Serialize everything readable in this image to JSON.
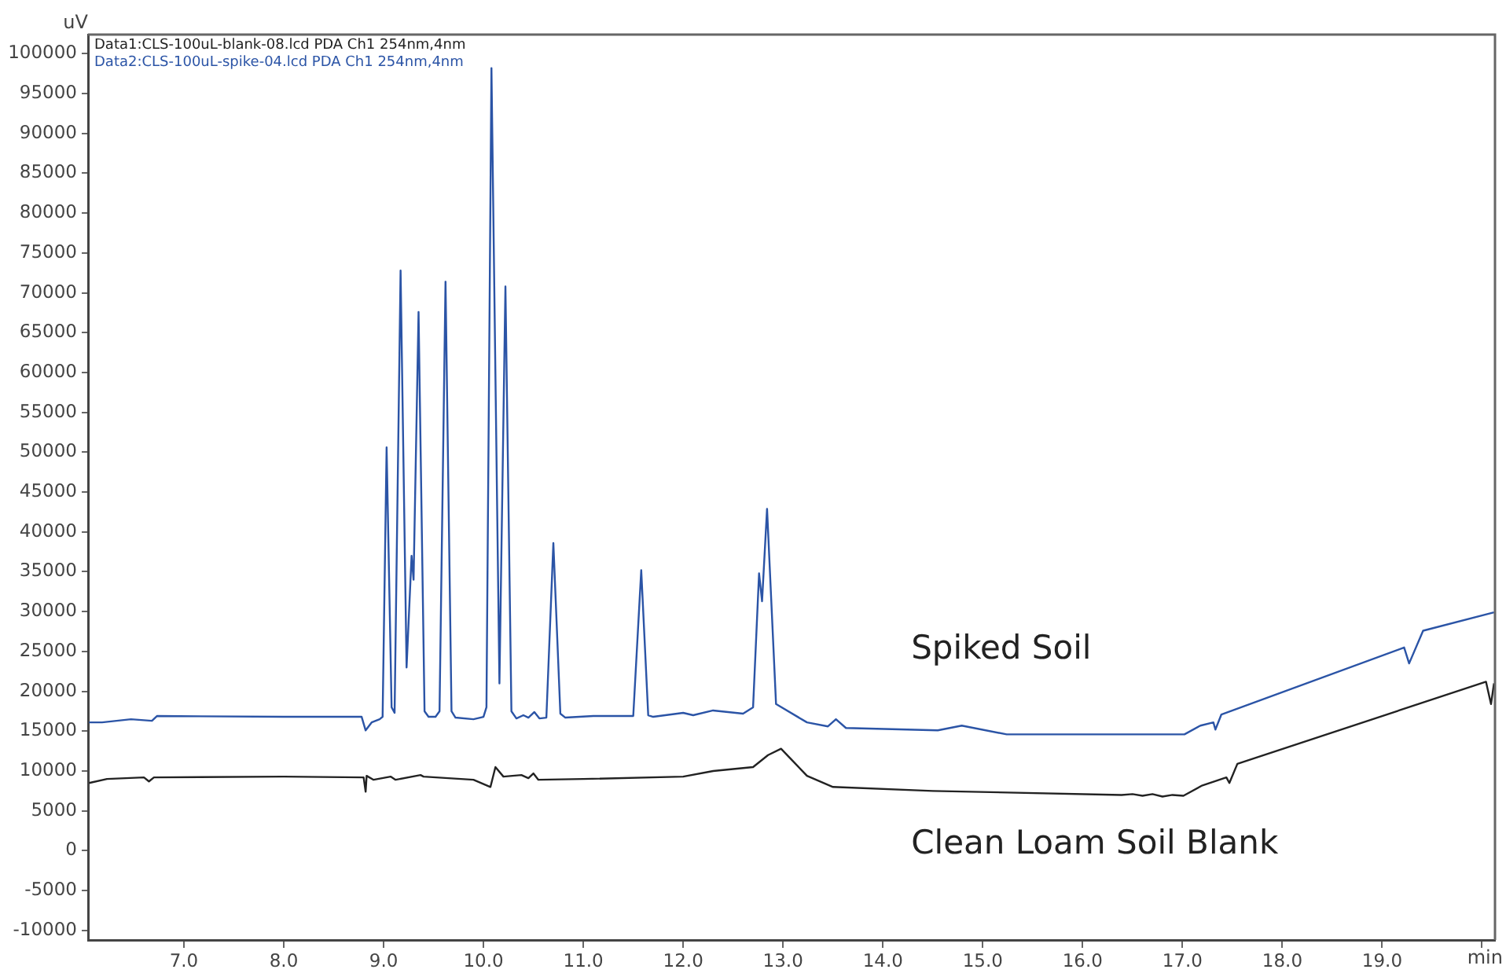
{
  "chart_data": {
    "type": "line",
    "xlabel": "min",
    "ylabel": "uV",
    "legend": "top left",
    "grid": false,
    "marker": "none",
    "line_style": "solid",
    "xlim": [
      6.04,
      20.13
    ],
    "ylim": [
      -11200,
      102400
    ],
    "xticks": [
      {
        "value": 7,
        "label": "7.0"
      },
      {
        "value": 8,
        "label": "8.0"
      },
      {
        "value": 9,
        "label": "9.0"
      },
      {
        "value": 10,
        "label": "10.0"
      },
      {
        "value": 11,
        "label": "11.0"
      },
      {
        "value": 12,
        "label": "12.0"
      },
      {
        "value": 13,
        "label": "13.0"
      },
      {
        "value": 14,
        "label": "14.0"
      },
      {
        "value": 15,
        "label": "15.0"
      },
      {
        "value": 16,
        "label": "16.0"
      },
      {
        "value": 17,
        "label": "17.0"
      },
      {
        "value": 18,
        "label": "18.0"
      },
      {
        "value": 19,
        "label": "19.0"
      },
      {
        "value": 20,
        "label": null
      }
    ],
    "yticks": [
      -10000,
      -5000,
      0,
      5000,
      10000,
      15000,
      20000,
      25000,
      30000,
      35000,
      40000,
      45000,
      50000,
      55000,
      60000,
      65000,
      70000,
      75000,
      80000,
      85000,
      90000,
      95000,
      100000
    ],
    "series": [
      {
        "name": "Data1:CLS-100uL-blank-08.lcd PDA Ch1 254nm,4nm",
        "color": "#222222",
        "x": [
          6.05,
          6.23,
          6.6,
          6.65,
          6.7,
          8.0,
          8.8,
          8.82,
          8.83,
          8.9,
          9.07,
          9.12,
          9.37,
          9.4,
          9.9,
          10.07,
          10.12,
          10.2,
          10.38,
          10.45,
          10.5,
          10.55,
          11.0,
          12.0,
          12.3,
          12.7,
          12.85,
          12.98,
          13.24,
          13.5,
          14.5,
          16.39,
          16.5,
          16.6,
          16.7,
          16.8,
          16.9,
          17.01,
          17.2,
          17.44,
          17.47,
          17.55,
          20.04,
          20.09,
          20.12
        ],
        "values": [
          8500,
          9000,
          9200,
          8700,
          9200,
          9300,
          9200,
          7400,
          9400,
          8900,
          9300,
          8900,
          9500,
          9300,
          8900,
          8000,
          10500,
          9300,
          9500,
          9100,
          9700,
          8900,
          9000,
          9300,
          10000,
          10500,
          12000,
          12800,
          9400,
          8000,
          7500,
          7000,
          7100,
          6900,
          7100,
          6800,
          7000,
          6900,
          8200,
          9200,
          8500,
          10900,
          21200,
          18400,
          21000
        ]
      },
      {
        "name": "Data2:CLS-100uL-spike-04.lcd PDA Ch1 254nm,4nm",
        "color": "#2b54a6",
        "x": [
          6.05,
          6.18,
          6.47,
          6.68,
          6.73,
          8.0,
          8.78,
          8.82,
          8.88,
          8.96,
          8.99,
          9.03,
          9.08,
          9.11,
          9.17,
          9.23,
          9.28,
          9.3,
          9.35,
          9.41,
          9.45,
          9.52,
          9.56,
          9.62,
          9.68,
          9.72,
          9.9,
          10.0,
          10.03,
          10.08,
          10.16,
          10.22,
          10.28,
          10.33,
          10.4,
          10.45,
          10.51,
          10.56,
          10.63,
          10.7,
          10.77,
          10.82,
          11.1,
          11.5,
          11.58,
          11.65,
          11.7,
          12.0,
          12.1,
          12.3,
          12.6,
          12.7,
          12.76,
          12.79,
          12.84,
          12.93,
          13.24,
          13.45,
          13.53,
          13.63,
          14.55,
          14.79,
          15.24,
          17.02,
          17.18,
          17.31,
          17.33,
          17.39,
          19.22,
          19.27,
          19.41,
          20.12
        ],
        "values": [
          16100,
          16100,
          16500,
          16300,
          16900,
          16800,
          16800,
          15100,
          16100,
          16500,
          16800,
          50600,
          18000,
          17300,
          72800,
          23000,
          37000,
          34000,
          67600,
          17500,
          16800,
          16800,
          17500,
          71400,
          17500,
          16700,
          16500,
          16800,
          18000,
          98200,
          21000,
          70800,
          17500,
          16600,
          17000,
          16700,
          17400,
          16600,
          16700,
          38600,
          17200,
          16700,
          16900,
          16900,
          35200,
          17000,
          16800,
          17300,
          17000,
          17600,
          17200,
          18000,
          34800,
          31300,
          42900,
          18400,
          16100,
          15600,
          16500,
          15400,
          15100,
          15700,
          14600,
          14600,
          15700,
          16100,
          15200,
          17100,
          25500,
          23500,
          27600,
          29900
        ]
      }
    ],
    "annotations": [
      "Spiked Soil",
      "Clean Loam Soil Blank"
    ]
  }
}
